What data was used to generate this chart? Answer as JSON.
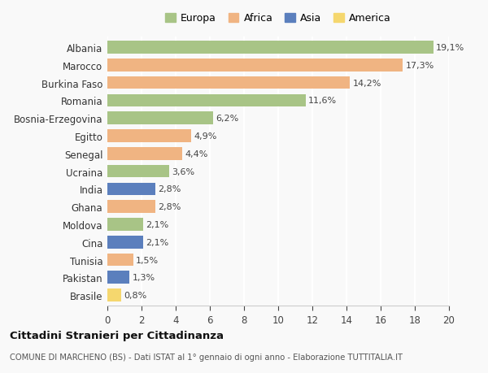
{
  "countries": [
    "Albania",
    "Marocco",
    "Burkina Faso",
    "Romania",
    "Bosnia-Erzegovina",
    "Egitto",
    "Senegal",
    "Ucraina",
    "India",
    "Ghana",
    "Moldova",
    "Cina",
    "Tunisia",
    "Pakistan",
    "Brasile"
  ],
  "values": [
    19.1,
    17.3,
    14.2,
    11.6,
    6.2,
    4.9,
    4.4,
    3.6,
    2.8,
    2.8,
    2.1,
    2.1,
    1.5,
    1.3,
    0.8
  ],
  "labels": [
    "19,1%",
    "17,3%",
    "14,2%",
    "11,6%",
    "6,2%",
    "4,9%",
    "4,4%",
    "3,6%",
    "2,8%",
    "2,8%",
    "2,1%",
    "2,1%",
    "1,5%",
    "1,3%",
    "0,8%"
  ],
  "continents": [
    "Europa",
    "Africa",
    "Africa",
    "Europa",
    "Europa",
    "Africa",
    "Africa",
    "Europa",
    "Asia",
    "Africa",
    "Europa",
    "Asia",
    "Africa",
    "Asia",
    "America"
  ],
  "colors": {
    "Europa": "#a8c486",
    "Africa": "#f0b482",
    "Asia": "#5b7fbd",
    "America": "#f5d76e"
  },
  "legend_order": [
    "Europa",
    "Africa",
    "Asia",
    "America"
  ],
  "xlim": [
    0,
    20
  ],
  "xticks": [
    0,
    2,
    4,
    6,
    8,
    10,
    12,
    14,
    16,
    18,
    20
  ],
  "title": "Cittadini Stranieri per Cittadinanza",
  "subtitle": "COMUNE DI MARCHENO (BS) - Dati ISTAT al 1° gennaio di ogni anno - Elaborazione TUTTITALIA.IT",
  "bg_color": "#f9f9f9",
  "grid_color": "#e0e0e0",
  "bar_height": 0.72
}
